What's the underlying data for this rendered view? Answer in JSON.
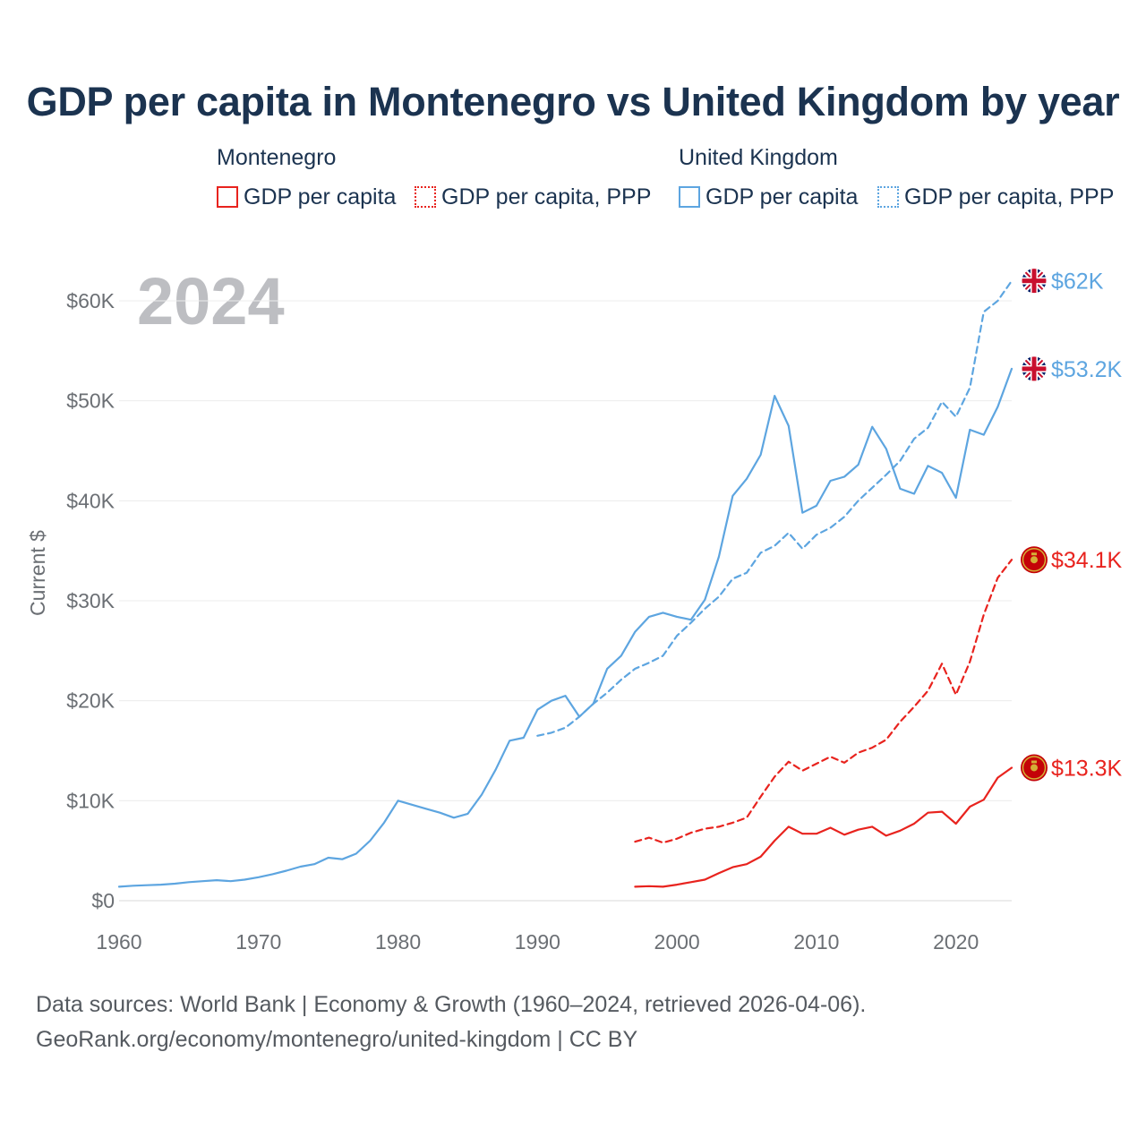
{
  "title": "GDP per capita in Montenegro vs United Kingdom by year",
  "legend": {
    "montenegro_title": "Montenegro",
    "uk_title": "United Kingdom",
    "mne_gdp": "GDP per capita",
    "mne_ppp": "GDP per capita, PPP",
    "uk_gdp": "GDP per capita",
    "uk_ppp": "GDP per capita, PPP"
  },
  "footer": {
    "line1": "Data sources: World Bank | Economy & Growth (1960–2024, retrieved 2026-04-06).",
    "line2": "GeoRank.org/economy/montenegro/united-kingdom | CC BY"
  },
  "colors": {
    "montenegro": "#e8231e",
    "uk": "#5da5e0",
    "title": "#1b3350"
  },
  "chart_data": {
    "type": "line",
    "title": "GDP per capita in Montenegro vs United Kingdom by year",
    "year_watermark": "2024",
    "xlabel": "",
    "ylabel": "Current $",
    "xlim": [
      1960,
      2024
    ],
    "ylim": [
      0,
      65000
    ],
    "x_ticks": [
      1960,
      1970,
      1980,
      1990,
      2000,
      2010,
      2020
    ],
    "x_tick_labels": [
      "1960",
      "1970",
      "1980",
      "1990",
      "2000",
      "2010",
      "2020"
    ],
    "y_ticks": [
      0,
      10000,
      20000,
      30000,
      40000,
      50000,
      60000
    ],
    "y_tick_labels": [
      "$0",
      "$10K",
      "$20K",
      "$30K",
      "$40K",
      "$50K",
      "$60K"
    ],
    "series": [
      {
        "name": "United Kingdom GDP per capita",
        "country": "uk",
        "style": "solid",
        "end_label": "$53.2K",
        "flag": "uk-flag-icon",
        "x": [
          1960,
          1961,
          1962,
          1963,
          1964,
          1965,
          1966,
          1967,
          1968,
          1969,
          1970,
          1971,
          1972,
          1973,
          1974,
          1975,
          1976,
          1977,
          1978,
          1979,
          1980,
          1981,
          1982,
          1983,
          1984,
          1985,
          1986,
          1987,
          1988,
          1989,
          1990,
          1991,
          1992,
          1993,
          1994,
          1995,
          1996,
          1997,
          1998,
          1999,
          2000,
          2001,
          2002,
          2003,
          2004,
          2005,
          2006,
          2007,
          2008,
          2009,
          2010,
          2011,
          2012,
          2013,
          2014,
          2015,
          2016,
          2017,
          2018,
          2019,
          2020,
          2021,
          2022,
          2023,
          2024
        ],
        "values": [
          1400,
          1500,
          1550,
          1600,
          1700,
          1850,
          1950,
          2050,
          1950,
          2100,
          2350,
          2650,
          3000,
          3400,
          3650,
          4300,
          4150,
          4700,
          6000,
          7800,
          10000,
          9600,
          9200,
          8800,
          8300,
          8700,
          10600,
          13100,
          16000,
          16300,
          19100,
          20000,
          20500,
          18400,
          19700,
          23200,
          24500,
          26900,
          28400,
          28800,
          28400,
          28100,
          30100,
          34400,
          40500,
          42200,
          44600,
          50500,
          47500,
          38800,
          39500,
          42000,
          42400,
          43600,
          47400,
          45200,
          41200,
          40700,
          43500,
          42800,
          40300,
          47100,
          46600,
          49400,
          53200
        ]
      },
      {
        "name": "United Kingdom GDP per capita, PPP",
        "country": "uk",
        "style": "dashed",
        "end_label": "$62K",
        "flag": "uk-flag-icon",
        "x": [
          1990,
          1991,
          1992,
          1993,
          1994,
          1995,
          1996,
          1997,
          1998,
          1999,
          2000,
          2001,
          2002,
          2003,
          2004,
          2005,
          2006,
          2007,
          2008,
          2009,
          2010,
          2011,
          2012,
          2013,
          2014,
          2015,
          2016,
          2017,
          2018,
          2019,
          2020,
          2021,
          2022,
          2023,
          2024
        ],
        "values": [
          16500,
          16800,
          17300,
          18400,
          19700,
          20800,
          22100,
          23200,
          23800,
          24500,
          26500,
          27800,
          29200,
          30400,
          32200,
          32800,
          34800,
          35500,
          36800,
          35200,
          36600,
          37300,
          38400,
          40000,
          41300,
          42600,
          44000,
          46200,
          47300,
          49900,
          48400,
          51300,
          58900,
          60000,
          62000
        ]
      },
      {
        "name": "Montenegro GDP per capita",
        "country": "montenegro",
        "style": "solid",
        "end_label": "$13.3K",
        "flag": "montenegro-flag-icon",
        "x": [
          1997,
          1998,
          1999,
          2000,
          2001,
          2002,
          2003,
          2004,
          2005,
          2006,
          2007,
          2008,
          2009,
          2010,
          2011,
          2012,
          2013,
          2014,
          2015,
          2016,
          2017,
          2018,
          2019,
          2020,
          2021,
          2022,
          2023,
          2024
        ],
        "values": [
          1400,
          1450,
          1400,
          1600,
          1850,
          2100,
          2750,
          3350,
          3650,
          4400,
          6000,
          7400,
          6700,
          6700,
          7300,
          6600,
          7100,
          7400,
          6500,
          7000,
          7700,
          8800,
          8900,
          7700,
          9400,
          10100,
          12300,
          13300
        ]
      },
      {
        "name": "Montenegro GDP per capita, PPP",
        "country": "montenegro",
        "style": "dashed",
        "end_label": "$34.1K",
        "flag": "montenegro-flag-icon",
        "x": [
          1997,
          1998,
          1999,
          2000,
          2001,
          2002,
          2003,
          2004,
          2005,
          2006,
          2007,
          2008,
          2009,
          2010,
          2011,
          2012,
          2013,
          2014,
          2015,
          2016,
          2017,
          2018,
          2019,
          2020,
          2021,
          2022,
          2023,
          2024
        ],
        "values": [
          5900,
          6300,
          5800,
          6200,
          6800,
          7200,
          7400,
          7800,
          8300,
          10400,
          12400,
          13900,
          13000,
          13700,
          14400,
          13800,
          14800,
          15300,
          16100,
          17900,
          19400,
          21000,
          23700,
          20600,
          23900,
          28600,
          32300,
          34100
        ]
      }
    ]
  }
}
